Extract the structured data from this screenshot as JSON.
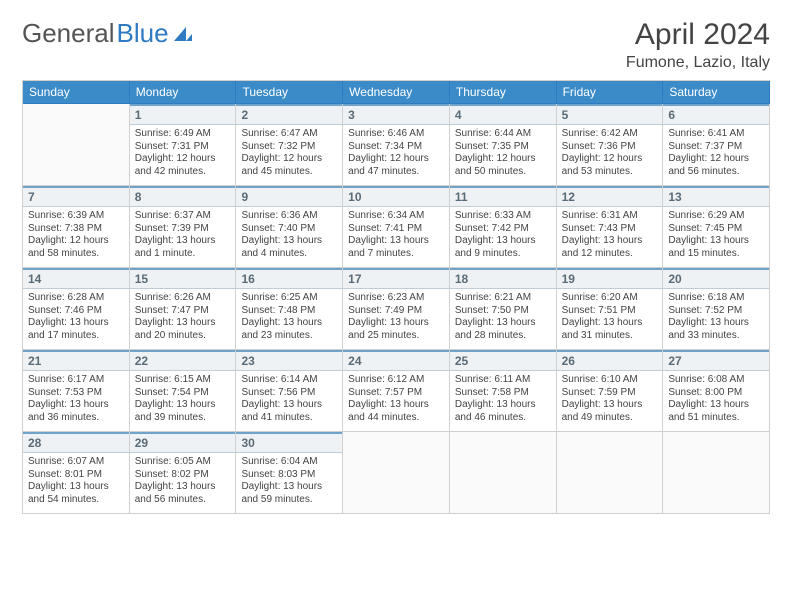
{
  "brand": {
    "part1": "General",
    "part2": "Blue"
  },
  "title": "April 2024",
  "location": "Fumone, Lazio, Italy",
  "colors": {
    "header_bg": "#3b8bc9",
    "header_text": "#ffffff",
    "accent": "#2f7ac0",
    "daynum_bg": "#eef2f4",
    "daynum_border_top": "#6fa3c9",
    "cell_border": "#d0d0d0",
    "text": "#444444"
  },
  "layout": {
    "cols": 7,
    "rows": 5,
    "start_offset": 1,
    "days_in_month": 30
  },
  "weekdays": [
    "Sunday",
    "Monday",
    "Tuesday",
    "Wednesday",
    "Thursday",
    "Friday",
    "Saturday"
  ],
  "days": [
    {
      "n": 1,
      "sr": "6:49 AM",
      "ss": "7:31 PM",
      "dl": "12 hours and 42 minutes."
    },
    {
      "n": 2,
      "sr": "6:47 AM",
      "ss": "7:32 PM",
      "dl": "12 hours and 45 minutes."
    },
    {
      "n": 3,
      "sr": "6:46 AM",
      "ss": "7:34 PM",
      "dl": "12 hours and 47 minutes."
    },
    {
      "n": 4,
      "sr": "6:44 AM",
      "ss": "7:35 PM",
      "dl": "12 hours and 50 minutes."
    },
    {
      "n": 5,
      "sr": "6:42 AM",
      "ss": "7:36 PM",
      "dl": "12 hours and 53 minutes."
    },
    {
      "n": 6,
      "sr": "6:41 AM",
      "ss": "7:37 PM",
      "dl": "12 hours and 56 minutes."
    },
    {
      "n": 7,
      "sr": "6:39 AM",
      "ss": "7:38 PM",
      "dl": "12 hours and 58 minutes."
    },
    {
      "n": 8,
      "sr": "6:37 AM",
      "ss": "7:39 PM",
      "dl": "13 hours and 1 minute."
    },
    {
      "n": 9,
      "sr": "6:36 AM",
      "ss": "7:40 PM",
      "dl": "13 hours and 4 minutes."
    },
    {
      "n": 10,
      "sr": "6:34 AM",
      "ss": "7:41 PM",
      "dl": "13 hours and 7 minutes."
    },
    {
      "n": 11,
      "sr": "6:33 AM",
      "ss": "7:42 PM",
      "dl": "13 hours and 9 minutes."
    },
    {
      "n": 12,
      "sr": "6:31 AM",
      "ss": "7:43 PM",
      "dl": "13 hours and 12 minutes."
    },
    {
      "n": 13,
      "sr": "6:29 AM",
      "ss": "7:45 PM",
      "dl": "13 hours and 15 minutes."
    },
    {
      "n": 14,
      "sr": "6:28 AM",
      "ss": "7:46 PM",
      "dl": "13 hours and 17 minutes."
    },
    {
      "n": 15,
      "sr": "6:26 AM",
      "ss": "7:47 PM",
      "dl": "13 hours and 20 minutes."
    },
    {
      "n": 16,
      "sr": "6:25 AM",
      "ss": "7:48 PM",
      "dl": "13 hours and 23 minutes."
    },
    {
      "n": 17,
      "sr": "6:23 AM",
      "ss": "7:49 PM",
      "dl": "13 hours and 25 minutes."
    },
    {
      "n": 18,
      "sr": "6:21 AM",
      "ss": "7:50 PM",
      "dl": "13 hours and 28 minutes."
    },
    {
      "n": 19,
      "sr": "6:20 AM",
      "ss": "7:51 PM",
      "dl": "13 hours and 31 minutes."
    },
    {
      "n": 20,
      "sr": "6:18 AM",
      "ss": "7:52 PM",
      "dl": "13 hours and 33 minutes."
    },
    {
      "n": 21,
      "sr": "6:17 AM",
      "ss": "7:53 PM",
      "dl": "13 hours and 36 minutes."
    },
    {
      "n": 22,
      "sr": "6:15 AM",
      "ss": "7:54 PM",
      "dl": "13 hours and 39 minutes."
    },
    {
      "n": 23,
      "sr": "6:14 AM",
      "ss": "7:56 PM",
      "dl": "13 hours and 41 minutes."
    },
    {
      "n": 24,
      "sr": "6:12 AM",
      "ss": "7:57 PM",
      "dl": "13 hours and 44 minutes."
    },
    {
      "n": 25,
      "sr": "6:11 AM",
      "ss": "7:58 PM",
      "dl": "13 hours and 46 minutes."
    },
    {
      "n": 26,
      "sr": "6:10 AM",
      "ss": "7:59 PM",
      "dl": "13 hours and 49 minutes."
    },
    {
      "n": 27,
      "sr": "6:08 AM",
      "ss": "8:00 PM",
      "dl": "13 hours and 51 minutes."
    },
    {
      "n": 28,
      "sr": "6:07 AM",
      "ss": "8:01 PM",
      "dl": "13 hours and 54 minutes."
    },
    {
      "n": 29,
      "sr": "6:05 AM",
      "ss": "8:02 PM",
      "dl": "13 hours and 56 minutes."
    },
    {
      "n": 30,
      "sr": "6:04 AM",
      "ss": "8:03 PM",
      "dl": "13 hours and 59 minutes."
    }
  ],
  "labels": {
    "sunrise": "Sunrise:",
    "sunset": "Sunset:",
    "daylight": "Daylight:"
  }
}
